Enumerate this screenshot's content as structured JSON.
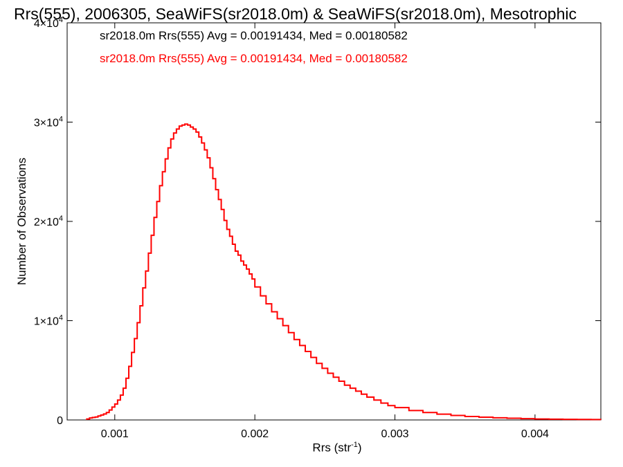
{
  "chart_data": {
    "type": "histogram",
    "title": "Rrs(555), 2006305, SeaWiFS(sr2018.0m) & SeaWiFS(sr2018.0m), Mesotrophic",
    "xlabel_main": "Rrs (str",
    "xlabel_sup": "-1",
    "xlabel_close": ")",
    "ylabel": "Number of Observations",
    "xlim": [
      0.00066,
      0.00447
    ],
    "ylim": [
      0,
      40000
    ],
    "x_ticks": [
      {
        "value": 0.001,
        "label": "0.001"
      },
      {
        "value": 0.002,
        "label": "0.002"
      },
      {
        "value": 0.003,
        "label": "0.003"
      },
      {
        "value": 0.004,
        "label": "0.004"
      }
    ],
    "y_ticks": [
      {
        "value": 0,
        "base": "0",
        "exp": ""
      },
      {
        "value": 10000,
        "base": "1×10",
        "exp": "4"
      },
      {
        "value": 20000,
        "base": "2×10",
        "exp": "4"
      },
      {
        "value": 30000,
        "base": "3×10",
        "exp": "4"
      },
      {
        "value": 40000,
        "base": "4×10",
        "exp": "4"
      }
    ],
    "legend": [
      {
        "text": "sr2018.0m Rrs(555) Avg = 0.00191434, Med = 0.00180582",
        "color": "#000000"
      },
      {
        "text": "sr2018.0m Rrs(555) Avg = 0.00191434, Med = 0.00180582",
        "color": "#ff0000"
      }
    ],
    "series": [
      {
        "color": "#ff0000",
        "x": [
          0.0008,
          0.00082,
          0.00084,
          0.00086,
          0.00088,
          0.0009,
          0.00092,
          0.00094,
          0.00096,
          0.00098,
          0.001,
          0.00102,
          0.00104,
          0.00106,
          0.00108,
          0.0011,
          0.00112,
          0.00114,
          0.00116,
          0.00118,
          0.0012,
          0.00122,
          0.00124,
          0.00126,
          0.00128,
          0.0013,
          0.00132,
          0.00134,
          0.00136,
          0.00138,
          0.0014,
          0.00142,
          0.00144,
          0.00146,
          0.00148,
          0.0015,
          0.00152,
          0.00154,
          0.00156,
          0.00158,
          0.0016,
          0.00162,
          0.00164,
          0.00166,
          0.00168,
          0.0017,
          0.00172,
          0.00174,
          0.00176,
          0.00178,
          0.0018,
          0.00182,
          0.00184,
          0.00186,
          0.00188,
          0.0019,
          0.00192,
          0.00194,
          0.00196,
          0.00198,
          0.002,
          0.00204,
          0.00208,
          0.00212,
          0.00216,
          0.0022,
          0.00224,
          0.00228,
          0.00232,
          0.00236,
          0.0024,
          0.00244,
          0.00248,
          0.00252,
          0.00256,
          0.0026,
          0.00264,
          0.00268,
          0.00272,
          0.00276,
          0.0028,
          0.00285,
          0.0029,
          0.00295,
          0.003,
          0.0031,
          0.0032,
          0.0033,
          0.0034,
          0.0035,
          0.0036,
          0.0037,
          0.0038,
          0.0039,
          0.004,
          0.0041,
          0.0042,
          0.0043,
          0.0044,
          0.00447
        ],
        "y": [
          100,
          200,
          250,
          300,
          400,
          500,
          600,
          750,
          1000,
          1300,
          1600,
          2000,
          2500,
          3200,
          4200,
          5400,
          6800,
          8200,
          9800,
          11500,
          13300,
          15000,
          16800,
          18600,
          20400,
          22000,
          23600,
          25000,
          26300,
          27400,
          28300,
          28900,
          29300,
          29600,
          29700,
          29800,
          29700,
          29500,
          29300,
          29000,
          28500,
          27900,
          27200,
          26400,
          25400,
          24300,
          23200,
          22200,
          21200,
          20100,
          19200,
          18500,
          17700,
          17000,
          16600,
          16000,
          15600,
          15200,
          14700,
          14200,
          13400,
          12500,
          11700,
          10900,
          10200,
          9500,
          8800,
          8100,
          7500,
          6900,
          6300,
          5700,
          5200,
          4700,
          4300,
          3900,
          3500,
          3200,
          2900,
          2600,
          2300,
          2000,
          1700,
          1450,
          1250,
          950,
          750,
          580,
          450,
          350,
          280,
          220,
          170,
          130,
          100,
          80,
          60,
          50,
          40,
          30
        ]
      }
    ]
  }
}
